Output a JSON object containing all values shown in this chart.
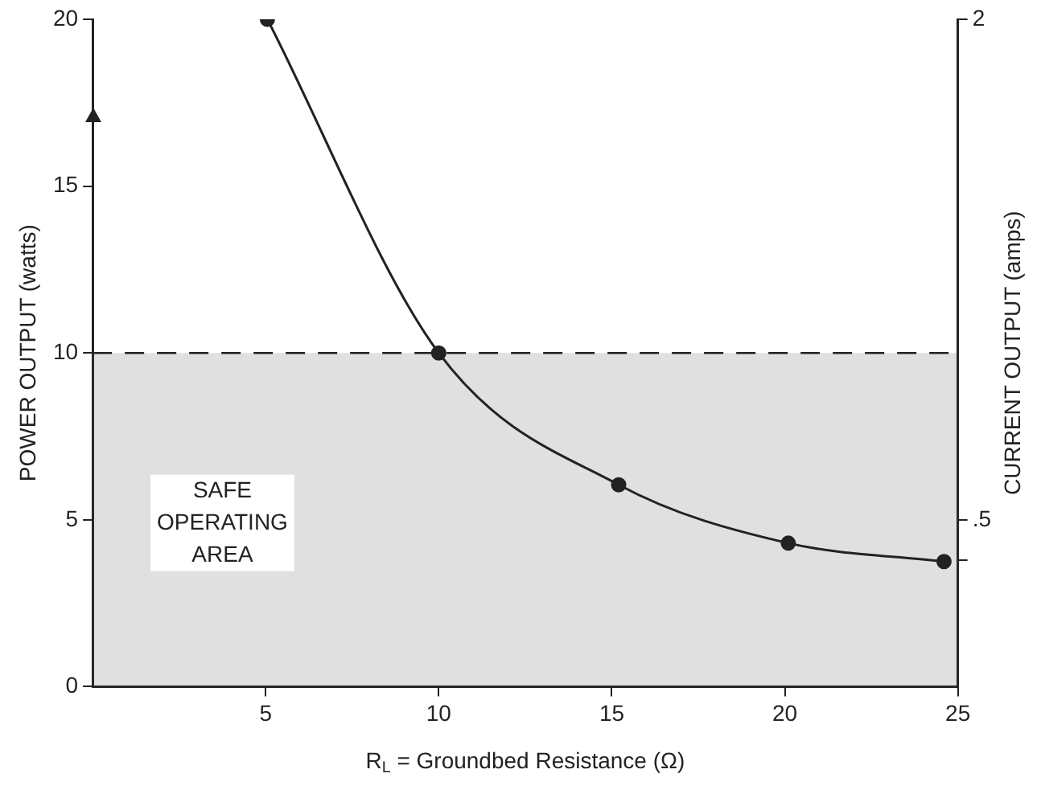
{
  "chart_data": {
    "type": "line",
    "xlabel": "R$_{L}$ = Groundbed Resistance (Ω)",
    "ylabel": "POWER OUTPUT (watts)",
    "y2label": "CURRENT OUTPUT (amps)",
    "x": [
      5.05,
      10,
      15.2,
      20.1,
      24.6
    ],
    "series": [
      {
        "color": "#222222",
        "values": [
          20,
          10,
          6.05,
          4.3,
          3.75
        ]
      }
    ],
    "xlim": [
      0,
      25
    ],
    "xticks": [
      5,
      10,
      15,
      20,
      25
    ],
    "ylim": [
      0,
      20
    ],
    "yticks": [
      0,
      5,
      10,
      15,
      20
    ],
    "y2lim": [
      0,
      2
    ],
    "y2ticks": [
      {
        "value": 0.5,
        "label": ".5"
      },
      {
        "value": 0.38,
        "label": null
      },
      2
    ],
    "ref_lines": [
      {
        "axis": "y",
        "value": 10,
        "label": null,
        "line_style": "dashed",
        "color": "#222222"
      }
    ],
    "bands": [
      {
        "axis": "y",
        "from": 0,
        "to": 10,
        "label": "SAFE OPERATING AREA",
        "color": "#555555"
      }
    ],
    "grid": false,
    "legend": false,
    "marker": "circle",
    "line_style": "solid"
  }
}
